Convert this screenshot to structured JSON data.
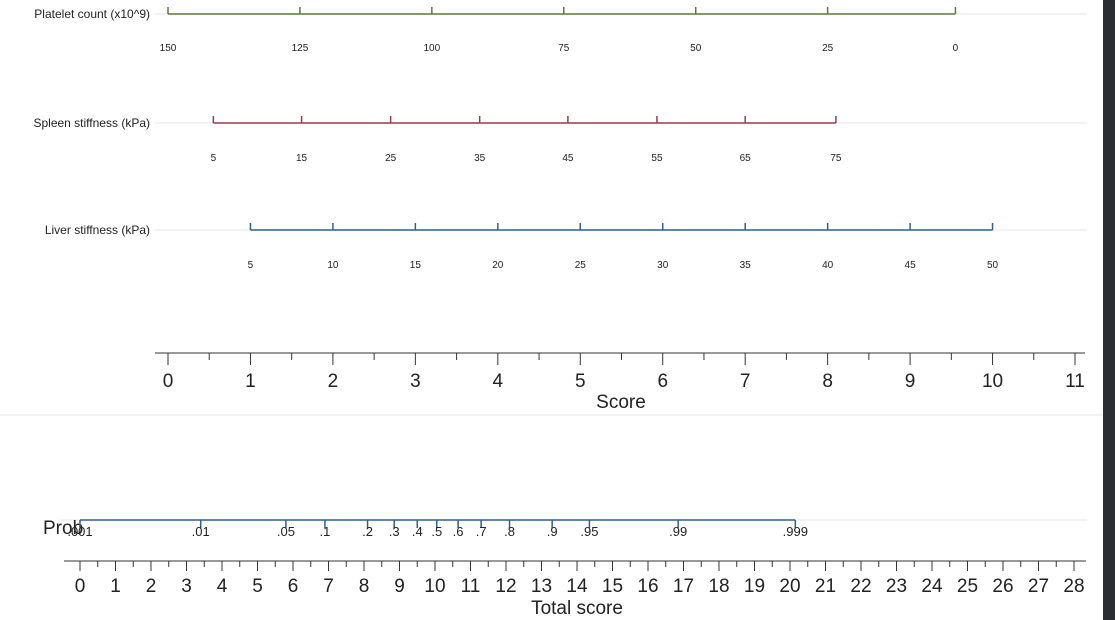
{
  "chart_data": {
    "type": "nomogram",
    "score_axis": {
      "label": "Score",
      "major_ticks": [
        0,
        1,
        2,
        3,
        4,
        5,
        6,
        7,
        8,
        9,
        10,
        11
      ],
      "minor_step": 0.5,
      "range": [
        0,
        11
      ]
    },
    "predictors": [
      {
        "name": "Platelet count (x10^9)",
        "color": "#5a7a3a",
        "ticks": [
          {
            "label": "150",
            "score": 0.0
          },
          {
            "label": "125",
            "score": 1.6
          },
          {
            "label": "100",
            "score": 3.2
          },
          {
            "label": "75",
            "score": 4.8
          },
          {
            "label": "50",
            "score": 6.4
          },
          {
            "label": "25",
            "score": 8.0
          },
          {
            "label": "0",
            "score": 9.55
          }
        ]
      },
      {
        "name": "Spleen stiffness (kPa)",
        "color": "#9b3a4a",
        "ticks": [
          {
            "label": "5",
            "score": 0.55
          },
          {
            "label": "15",
            "score": 1.62
          },
          {
            "label": "25",
            "score": 2.7
          },
          {
            "label": "35",
            "score": 3.78
          },
          {
            "label": "45",
            "score": 4.85
          },
          {
            "label": "55",
            "score": 5.93
          },
          {
            "label": "65",
            "score": 7.0
          },
          {
            "label": "75",
            "score": 8.1
          }
        ]
      },
      {
        "name": "Liver stiffness (kPa)",
        "color": "#2f5f8a",
        "ticks": [
          {
            "label": "5",
            "score": 1.0
          },
          {
            "label": "10",
            "score": 2.0
          },
          {
            "label": "15",
            "score": 3.0
          },
          {
            "label": "20",
            "score": 4.0
          },
          {
            "label": "25",
            "score": 5.0
          },
          {
            "label": "30",
            "score": 6.0
          },
          {
            "label": "35",
            "score": 7.0
          },
          {
            "label": "40",
            "score": 8.0
          },
          {
            "label": "45",
            "score": 9.0
          },
          {
            "label": "50",
            "score": 10.0
          }
        ]
      }
    ],
    "probability_axis": {
      "label": "Prob",
      "color": "#2f5f8a",
      "ticks": [
        {
          "label": ".001",
          "total": 0.0
        },
        {
          "label": ".01",
          "total": 3.4
        },
        {
          "label": ".05",
          "total": 5.8
        },
        {
          "label": ".1",
          "total": 6.9
        },
        {
          "label": ".2",
          "total": 8.1
        },
        {
          "label": ".3",
          "total": 8.85
        },
        {
          "label": ".4",
          "total": 9.5
        },
        {
          "label": ".5",
          "total": 10.05
        },
        {
          "label": ".6",
          "total": 10.65
        },
        {
          "label": ".7",
          "total": 11.3
        },
        {
          "label": ".8",
          "total": 12.1
        },
        {
          "label": ".9",
          "total": 13.3
        },
        {
          "label": ".95",
          "total": 14.35
        },
        {
          "label": ".99",
          "total": 16.85
        },
        {
          "label": ".999",
          "total": 20.15
        }
      ]
    },
    "total_axis": {
      "label": "Total score",
      "major_ticks": [
        0,
        1,
        2,
        3,
        4,
        5,
        6,
        7,
        8,
        9,
        10,
        11,
        12,
        13,
        14,
        15,
        16,
        17,
        18,
        19,
        20,
        21,
        22,
        23,
        24,
        25,
        26,
        27,
        28
      ],
      "minor_step": 0.5,
      "range": [
        0,
        28
      ]
    },
    "grid": true
  }
}
